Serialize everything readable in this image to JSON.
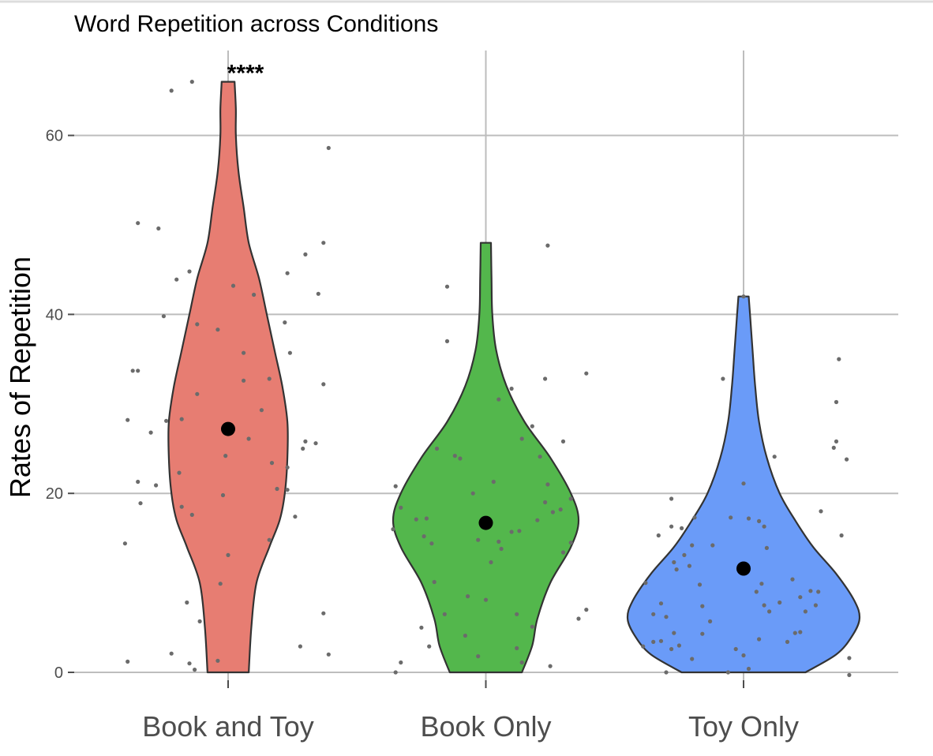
{
  "chart_data": {
    "type": "violin",
    "title": "Word Repetition across Conditions",
    "xlabel": "",
    "ylabel": "Rates of Repetition",
    "ylim": [
      0,
      66
    ],
    "yticks": [
      0,
      20,
      40,
      60
    ],
    "grid": true,
    "legend": "none",
    "categories": [
      "Book and Toy",
      "Book Only",
      "Toy Only"
    ],
    "groups": [
      {
        "category": "Book and Toy",
        "color": "#e77d72",
        "mean": 27.2,
        "annotation": "****",
        "violin_profile": [
          {
            "y": 0,
            "half_width": 0.08
          },
          {
            "y": 5,
            "half_width": 0.09
          },
          {
            "y": 10,
            "half_width": 0.11
          },
          {
            "y": 14,
            "half_width": 0.16
          },
          {
            "y": 17,
            "half_width": 0.2
          },
          {
            "y": 20,
            "half_width": 0.22
          },
          {
            "y": 24,
            "half_width": 0.23
          },
          {
            "y": 28,
            "half_width": 0.23
          },
          {
            "y": 32,
            "half_width": 0.21
          },
          {
            "y": 36,
            "half_width": 0.18
          },
          {
            "y": 40,
            "half_width": 0.15
          },
          {
            "y": 44,
            "half_width": 0.12
          },
          {
            "y": 48,
            "half_width": 0.08
          },
          {
            "y": 52,
            "half_width": 0.06
          },
          {
            "y": 56,
            "half_width": 0.04
          },
          {
            "y": 60,
            "half_width": 0.03
          },
          {
            "y": 63,
            "half_width": 0.03
          },
          {
            "y": 66,
            "half_width": 0.025
          }
        ],
        "points": [
          {
            "x": -0.39,
            "y": 1.2
          },
          {
            "x": -0.22,
            "y": 2.1
          },
          {
            "x": -0.15,
            "y": 1.0
          },
          {
            "x": -0.13,
            "y": 0.3
          },
          {
            "x": -0.11,
            "y": 5.7
          },
          {
            "x": -0.16,
            "y": 7.8
          },
          {
            "x": -0.04,
            "y": 1.3
          },
          {
            "x": -0.03,
            "y": 9.9
          },
          {
            "x": 0.0,
            "y": 13.1
          },
          {
            "x": -0.02,
            "y": 19.8
          },
          {
            "x": -0.01,
            "y": 24.2
          },
          {
            "x": -0.14,
            "y": 17.6
          },
          {
            "x": -0.18,
            "y": 18.5
          },
          {
            "x": -0.19,
            "y": 22.3
          },
          {
            "x": -0.4,
            "y": 14.4
          },
          {
            "x": -0.34,
            "y": 18.9
          },
          {
            "x": -0.35,
            "y": 21.3
          },
          {
            "x": -0.28,
            "y": 20.9
          },
          {
            "x": -0.3,
            "y": 26.8
          },
          {
            "x": -0.39,
            "y": 28.2
          },
          {
            "x": -0.24,
            "y": 28.1
          },
          {
            "x": -0.18,
            "y": 28.3
          },
          {
            "x": -0.12,
            "y": 31.1
          },
          {
            "x": -0.37,
            "y": 33.7
          },
          {
            "x": -0.35,
            "y": 33.7
          },
          {
            "x": -0.25,
            "y": 39.8
          },
          {
            "x": -0.2,
            "y": 43.9
          },
          {
            "x": -0.15,
            "y": 44.8
          },
          {
            "x": -0.12,
            "y": 38.9
          },
          {
            "x": -0.04,
            "y": 38.3
          },
          {
            "x": 0.02,
            "y": 43.2
          },
          {
            "x": 0.06,
            "y": 35.7
          },
          {
            "x": 0.06,
            "y": 32.6
          },
          {
            "x": 0.08,
            "y": 26.1
          },
          {
            "x": 0.1,
            "y": 42.2
          },
          {
            "x": 0.13,
            "y": 29.3
          },
          {
            "x": 0.16,
            "y": 32.8
          },
          {
            "x": 0.17,
            "y": 23.4
          },
          {
            "x": 0.19,
            "y": 20.5
          },
          {
            "x": 0.23,
            "y": 20.4
          },
          {
            "x": 0.23,
            "y": 22.9
          },
          {
            "x": 0.24,
            "y": 35.7
          },
          {
            "x": 0.22,
            "y": 39.1
          },
          {
            "x": 0.23,
            "y": 44.6
          },
          {
            "x": 0.29,
            "y": 25.0
          },
          {
            "x": 0.3,
            "y": 25.8
          },
          {
            "x": 0.34,
            "y": 25.6
          },
          {
            "x": 0.3,
            "y": 46.7
          },
          {
            "x": 0.35,
            "y": 42.3
          },
          {
            "x": 0.37,
            "y": 48.0
          },
          {
            "x": 0.37,
            "y": 32.2
          },
          {
            "x": 0.39,
            "y": 58.6
          },
          {
            "x": 0.26,
            "y": 17.4
          },
          {
            "x": 0.16,
            "y": 14.8
          },
          {
            "x": 0.28,
            "y": 2.9
          },
          {
            "x": 0.37,
            "y": 6.6
          },
          {
            "x": 0.39,
            "y": 2.0
          },
          {
            "x": -0.35,
            "y": 50.2
          },
          {
            "x": -0.27,
            "y": 49.6
          },
          {
            "x": -0.22,
            "y": 65.0
          },
          {
            "x": -0.14,
            "y": 66.0
          }
        ]
      },
      {
        "category": "Book Only",
        "color": "#53b74c",
        "mean": 16.7,
        "annotation": "",
        "violin_profile": [
          {
            "y": 0,
            "half_width": 0.14
          },
          {
            "y": 3,
            "half_width": 0.18
          },
          {
            "y": 6,
            "half_width": 0.2
          },
          {
            "y": 10,
            "half_width": 0.25
          },
          {
            "y": 14,
            "half_width": 0.33
          },
          {
            "y": 17,
            "half_width": 0.36
          },
          {
            "y": 20,
            "half_width": 0.33
          },
          {
            "y": 24,
            "half_width": 0.25
          },
          {
            "y": 28,
            "half_width": 0.15
          },
          {
            "y": 32,
            "half_width": 0.08
          },
          {
            "y": 36,
            "half_width": 0.04
          },
          {
            "y": 40,
            "half_width": 0.025
          },
          {
            "y": 44,
            "half_width": 0.022
          },
          {
            "y": 48,
            "half_width": 0.02
          }
        ],
        "points": [
          {
            "x": -0.35,
            "y": 0.0
          },
          {
            "x": -0.33,
            "y": 1.1
          },
          {
            "x": -0.25,
            "y": 5.0
          },
          {
            "x": -0.22,
            "y": 2.9
          },
          {
            "x": -0.16,
            "y": 6.5
          },
          {
            "x": -0.2,
            "y": 10.1
          },
          {
            "x": -0.07,
            "y": 8.5
          },
          {
            "x": -0.03,
            "y": 1.8
          },
          {
            "x": 0.0,
            "y": 8.1
          },
          {
            "x": 0.02,
            "y": 12.3
          },
          {
            "x": 0.05,
            "y": 14.6
          },
          {
            "x": 0.1,
            "y": 15.7
          },
          {
            "x": 0.12,
            "y": 6.5
          },
          {
            "x": 0.12,
            "y": 2.7
          },
          {
            "x": 0.14,
            "y": 1.1
          },
          {
            "x": 0.18,
            "y": 5.1
          },
          {
            "x": 0.25,
            "y": 0.7
          },
          {
            "x": 0.3,
            "y": 13.4
          },
          {
            "x": 0.33,
            "y": 14.5
          },
          {
            "x": 0.36,
            "y": 6.0
          },
          {
            "x": 0.39,
            "y": 7.0
          },
          {
            "x": -0.36,
            "y": 16.0
          },
          {
            "x": -0.35,
            "y": 20.8
          },
          {
            "x": -0.33,
            "y": 18.4
          },
          {
            "x": -0.27,
            "y": 17.1
          },
          {
            "x": -0.23,
            "y": 17.2
          },
          {
            "x": -0.24,
            "y": 15.2
          },
          {
            "x": -0.21,
            "y": 14.4
          },
          {
            "x": -0.19,
            "y": 25.0
          },
          {
            "x": -0.12,
            "y": 24.2
          },
          {
            "x": -0.1,
            "y": 23.9
          },
          {
            "x": -0.05,
            "y": 20.0
          },
          {
            "x": -0.03,
            "y": 14.8
          },
          {
            "x": 0.02,
            "y": 16.8
          },
          {
            "x": 0.03,
            "y": 21.3
          },
          {
            "x": 0.05,
            "y": 30.5
          },
          {
            "x": 0.1,
            "y": 31.7
          },
          {
            "x": 0.13,
            "y": 15.8
          },
          {
            "x": 0.14,
            "y": 26.1
          },
          {
            "x": 0.18,
            "y": 27.5
          },
          {
            "x": 0.2,
            "y": 17.0
          },
          {
            "x": 0.21,
            "y": 24.1
          },
          {
            "x": 0.23,
            "y": 19.0
          },
          {
            "x": 0.24,
            "y": 21.0
          },
          {
            "x": 0.26,
            "y": 17.9
          },
          {
            "x": 0.29,
            "y": 18.2
          },
          {
            "x": 0.3,
            "y": 25.8
          },
          {
            "x": 0.33,
            "y": 19.4
          },
          {
            "x": 0.39,
            "y": 33.4
          },
          {
            "x": -0.15,
            "y": 43.1
          },
          {
            "x": -0.15,
            "y": 37.0
          },
          {
            "x": 0.23,
            "y": 32.8
          },
          {
            "x": 0.24,
            "y": 47.7
          },
          {
            "x": 0.06,
            "y": 13.8
          },
          {
            "x": -0.08,
            "y": 4.1
          }
        ]
      },
      {
        "category": "Toy Only",
        "color": "#6a9bf8",
        "mean": 11.6,
        "annotation": "",
        "violin_profile": [
          {
            "y": 0,
            "half_width": 0.24
          },
          {
            "y": 2,
            "half_width": 0.36
          },
          {
            "y": 4,
            "half_width": 0.42
          },
          {
            "y": 6,
            "half_width": 0.45
          },
          {
            "y": 8,
            "half_width": 0.43
          },
          {
            "y": 11,
            "half_width": 0.36
          },
          {
            "y": 14,
            "half_width": 0.27
          },
          {
            "y": 17,
            "half_width": 0.2
          },
          {
            "y": 20,
            "half_width": 0.14
          },
          {
            "y": 24,
            "half_width": 0.09
          },
          {
            "y": 28,
            "half_width": 0.06
          },
          {
            "y": 32,
            "half_width": 0.045
          },
          {
            "y": 36,
            "half_width": 0.035
          },
          {
            "y": 40,
            "half_width": 0.025
          },
          {
            "y": 42,
            "half_width": 0.02
          }
        ],
        "points": [
          {
            "x": -0.3,
            "y": 0.0
          },
          {
            "x": -0.39,
            "y": 2.9
          },
          {
            "x": -0.35,
            "y": 3.4
          },
          {
            "x": -0.32,
            "y": 3.5
          },
          {
            "x": -0.28,
            "y": 2.6
          },
          {
            "x": -0.25,
            "y": 3.0
          },
          {
            "x": -0.3,
            "y": 6.2
          },
          {
            "x": -0.35,
            "y": 6.5
          },
          {
            "x": -0.32,
            "y": 7.7
          },
          {
            "x": -0.27,
            "y": 4.4
          },
          {
            "x": -0.2,
            "y": 1.5
          },
          {
            "x": -0.16,
            "y": 4.3
          },
          {
            "x": -0.16,
            "y": 7.4
          },
          {
            "x": -0.17,
            "y": 9.8
          },
          {
            "x": -0.2,
            "y": 14.2
          },
          {
            "x": -0.26,
            "y": 11.5
          },
          {
            "x": -0.27,
            "y": 12.3
          },
          {
            "x": -0.28,
            "y": 16.3
          },
          {
            "x": -0.24,
            "y": 16.1
          },
          {
            "x": -0.23,
            "y": 13.1
          },
          {
            "x": -0.21,
            "y": 11.9
          },
          {
            "x": -0.19,
            "y": 17.3
          },
          {
            "x": -0.28,
            "y": 19.4
          },
          {
            "x": -0.38,
            "y": 10.0
          },
          {
            "x": -0.33,
            "y": 15.3
          },
          {
            "x": -0.08,
            "y": 32.8
          },
          {
            "x": -0.05,
            "y": 17.3
          },
          {
            "x": 0.02,
            "y": 17.2
          },
          {
            "x": 0.06,
            "y": 16.9
          },
          {
            "x": 0.0,
            "y": 21.1
          },
          {
            "x": 0.08,
            "y": 16.3
          },
          {
            "x": 0.09,
            "y": 13.9
          },
          {
            "x": 0.07,
            "y": 9.9
          },
          {
            "x": 0.05,
            "y": 9.0
          },
          {
            "x": 0.08,
            "y": 7.5
          },
          {
            "x": 0.06,
            "y": 3.7
          },
          {
            "x": 0.0,
            "y": 1.9
          },
          {
            "x": 0.02,
            "y": 0.4
          },
          {
            "x": -0.06,
            "y": 0.0
          },
          {
            "x": -0.03,
            "y": 2.6
          },
          {
            "x": 0.1,
            "y": 6.8
          },
          {
            "x": 0.14,
            "y": 7.8
          },
          {
            "x": 0.19,
            "y": 10.4
          },
          {
            "x": 0.2,
            "y": 4.4
          },
          {
            "x": 0.22,
            "y": 4.5
          },
          {
            "x": 0.24,
            "y": 6.8
          },
          {
            "x": 0.22,
            "y": 8.4
          },
          {
            "x": 0.26,
            "y": 9.1
          },
          {
            "x": 0.29,
            "y": 9.0
          },
          {
            "x": 0.28,
            "y": 7.5
          },
          {
            "x": 0.3,
            "y": 18.0
          },
          {
            "x": 0.38,
            "y": 15.3
          },
          {
            "x": 0.36,
            "y": 25.8
          },
          {
            "x": 0.35,
            "y": 25.1
          },
          {
            "x": 0.36,
            "y": 30.2
          },
          {
            "x": 0.37,
            "y": 35.0
          },
          {
            "x": 0.4,
            "y": 23.8
          },
          {
            "x": 0.41,
            "y": 1.6
          },
          {
            "x": 0.41,
            "y": -0.3
          },
          {
            "x": 0.12,
            "y": 24.1
          },
          {
            "x": 0.17,
            "y": 3.4
          },
          {
            "x": 0.0,
            "y": 42.0
          },
          {
            "x": -0.12,
            "y": 14.2
          },
          {
            "x": -0.13,
            "y": 5.7
          }
        ]
      }
    ]
  }
}
